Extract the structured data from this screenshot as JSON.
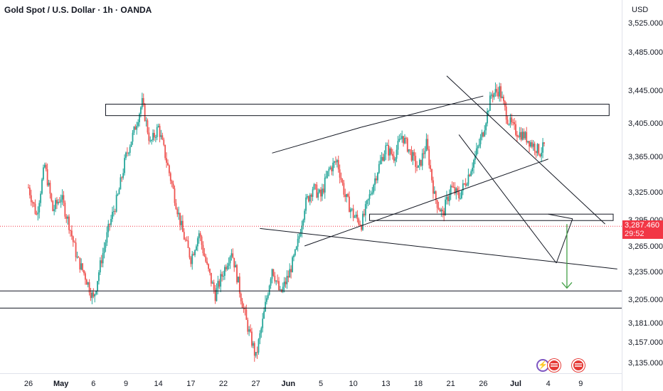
{
  "header": {
    "title": "Gold Spot / U.S. Dollar · 1h · OANDA",
    "currency": "USD"
  },
  "price_tag": {
    "price": "3,287.460",
    "countdown": "29:52"
  },
  "colors": {
    "up": "#26a69a",
    "down": "#ef5350",
    "line": "#131722",
    "arrow": "#43a047",
    "price_line": "#f23645",
    "axis_text": "#131722"
  },
  "icons": [
    "lightning-icon",
    "us-flag-icon",
    "us-flag-icon"
  ],
  "chart_data": {
    "type": "candlestick",
    "title": "Gold Spot / U.S. Dollar · 1h · OANDA",
    "y_axis": {
      "unit": "USD",
      "ticks": [
        "3,525.000",
        "3,485.000",
        "3,445.000",
        "3,405.000",
        "3,365.000",
        "3,325.000",
        "3,295.000",
        "3,265.000",
        "3,235.000",
        "3,205.000",
        "3,181.000",
        "3,157.000",
        "3,135.000"
      ],
      "tick_values": [
        3525,
        3485,
        3445,
        3405,
        3365,
        3325,
        3295,
        3265,
        3235,
        3205,
        3181,
        3157,
        3135
      ]
    },
    "x_axis": {
      "ticks": [
        "26",
        "May",
        "6",
        "9",
        "14",
        "17",
        "22",
        "27",
        "Jun",
        "5",
        "10",
        "13",
        "18",
        "21",
        "26",
        "Jul",
        "4",
        "9"
      ],
      "bold_ticks": [
        "May",
        "Jun",
        "Jul"
      ],
      "tick_index": [
        0,
        4,
        8,
        12,
        16,
        20,
        24,
        28,
        32,
        36,
        40,
        44,
        48,
        52,
        56,
        60,
        64,
        68
      ]
    },
    "last_price": 3287.46,
    "price_path": [
      [
        0,
        3330
      ],
      [
        1,
        3300
      ],
      [
        2,
        3355
      ],
      [
        3,
        3305
      ],
      [
        4,
        3320
      ],
      [
        5,
        3290
      ],
      [
        6,
        3250
      ],
      [
        7,
        3230
      ],
      [
        8,
        3205
      ],
      [
        9,
        3250
      ],
      [
        10,
        3290
      ],
      [
        11,
        3320
      ],
      [
        12,
        3365
      ],
      [
        13,
        3395
      ],
      [
        14,
        3430
      ],
      [
        15,
        3380
      ],
      [
        16,
        3400
      ],
      [
        17,
        3360
      ],
      [
        18,
        3320
      ],
      [
        19,
        3280
      ],
      [
        20,
        3250
      ],
      [
        21,
        3280
      ],
      [
        22,
        3240
      ],
      [
        23,
        3210
      ],
      [
        24,
        3235
      ],
      [
        25,
        3260
      ],
      [
        26,
        3215
      ],
      [
        27,
        3175
      ],
      [
        28,
        3140
      ],
      [
        29,
        3190
      ],
      [
        30,
        3240
      ],
      [
        31,
        3210
      ],
      [
        32,
        3230
      ],
      [
        33,
        3260
      ],
      [
        34,
        3310
      ],
      [
        35,
        3330
      ],
      [
        36,
        3320
      ],
      [
        37,
        3350
      ],
      [
        38,
        3360
      ],
      [
        39,
        3320
      ],
      [
        40,
        3300
      ],
      [
        41,
        3290
      ],
      [
        42,
        3320
      ],
      [
        43,
        3350
      ],
      [
        44,
        3375
      ],
      [
        45,
        3365
      ],
      [
        46,
        3390
      ],
      [
        47,
        3370
      ],
      [
        48,
        3350
      ],
      [
        49,
        3380
      ],
      [
        50,
        3320
      ],
      [
        51,
        3300
      ],
      [
        52,
        3330
      ],
      [
        53,
        3320
      ],
      [
        54,
        3340
      ],
      [
        55,
        3365
      ],
      [
        56,
        3395
      ],
      [
        57,
        3440
      ],
      [
        58,
        3445
      ],
      [
        59,
        3410
      ],
      [
        60,
        3395
      ],
      [
        61,
        3390
      ],
      [
        62,
        3380
      ],
      [
        63,
        3370
      ],
      [
        64,
        3385
      ],
      [
        65,
        3360
      ],
      [
        66,
        3345
      ],
      [
        67,
        3320
      ],
      [
        68,
        3330
      ],
      [
        69,
        3335
      ],
      [
        70,
        3325
      ],
      [
        71,
        3300
      ],
      [
        72,
        3280
      ],
      [
        73,
        3255
      ],
      [
        74,
        3265
      ],
      [
        75,
        3287
      ]
    ],
    "price_path_x_range": [
      0,
      75
    ],
    "x_axis_range": [
      0,
      72
    ],
    "annotations": {
      "zones": [
        {
          "x1": 9.5,
          "x2": 71.5,
          "y_top": 3428,
          "y_bottom": 3414
        },
        {
          "x1": 42,
          "x2": 72,
          "y_top": 3301,
          "y_bottom": 3294
        }
      ],
      "horizontal_lines": [
        3214,
        3196
      ],
      "trend_lines": [
        {
          "p1": [
            30,
            3369
          ],
          "p2": [
            41,
            3400
          ]
        },
        {
          "p1": [
            41,
            3400
          ],
          "p2": [
            56,
            3438
          ]
        },
        {
          "p1": [
            34,
            3265
          ],
          "p2": [
            64,
            3362
          ]
        },
        {
          "p1": [
            28.5,
            3285
          ],
          "p2": [
            72.5,
            3238
          ]
        },
        {
          "p1": [
            51.5,
            3460
          ],
          "p2": [
            71,
            3290
          ]
        },
        {
          "p1": [
            53,
            3391
          ],
          "p2": [
            65,
            3245
          ]
        },
        {
          "p1": [
            65,
            3245
          ],
          "p2": [
            67,
            3296
          ]
        },
        {
          "p1": [
            64,
            3301
          ],
          "p2": [
            67,
            3296
          ]
        }
      ],
      "projection_arrow": {
        "from": [
          66.3,
          3290
        ],
        "to": [
          66.3,
          3214
        ]
      }
    }
  }
}
